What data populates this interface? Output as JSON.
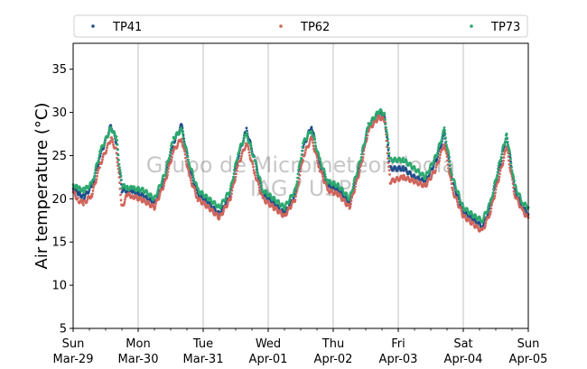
{
  "chart_data": {
    "type": "scatter",
    "title": "",
    "xlabel": "",
    "ylabel": "Air temperature (°C)",
    "ylim": [
      5,
      38
    ],
    "yticks": [
      5,
      10,
      15,
      20,
      25,
      30,
      35
    ],
    "xlim": [
      "2026-03-29 00:00",
      "2026-04-05 00:00"
    ],
    "x_ticks": [
      {
        "x": "2026-03-29",
        "day": "Sun",
        "date": "Mar-29"
      },
      {
        "x": "2026-03-30",
        "day": "Mon",
        "date": "Mar-30"
      },
      {
        "x": "2026-03-31",
        "day": "Tue",
        "date": "Mar-31"
      },
      {
        "x": "2026-04-01",
        "day": "Wed",
        "date": "Apr-01"
      },
      {
        "x": "2026-04-02",
        "day": "Thu",
        "date": "Apr-02"
      },
      {
        "x": "2026-04-03",
        "day": "Fri",
        "date": "Apr-03"
      },
      {
        "x": "2026-04-04",
        "day": "Sat",
        "date": "Apr-04"
      },
      {
        "x": "2026-04-05",
        "day": "Sun",
        "date": "Apr-05"
      }
    ],
    "grid": "vertical at day boundaries",
    "legend_position": "top, above plot, 3 columns",
    "watermark": [
      "Grupo de Micrometeorologia",
      "IAG / USP"
    ],
    "series": [
      {
        "name": "TP41",
        "color": "#1f4e8c",
        "x": [
          "2026-03-29 00:00",
          "2026-03-29 02:00",
          "2026-03-29 04:00",
          "2026-03-29 07:00",
          "2026-03-29 10:00",
          "2026-03-29 14:00",
          "2026-03-29 16:00",
          "2026-03-29 18:00",
          "2026-03-29 20:00",
          "2026-03-29 22:00",
          "2026-03-30 02:00",
          "2026-03-30 06:00",
          "2026-03-30 10:00",
          "2026-03-30 13:00",
          "2026-03-30 16:00",
          "2026-03-30 19:00",
          "2026-03-30 22:00",
          "2026-03-31 02:00",
          "2026-03-31 06:00",
          "2026-03-31 10:00",
          "2026-03-31 13:00",
          "2026-03-31 16:00",
          "2026-03-31 19:00",
          "2026-03-31 22:00",
          "2026-04-01 02:00",
          "2026-04-01 06:00",
          "2026-04-01 10:00",
          "2026-04-01 13:00",
          "2026-04-01 16:00",
          "2026-04-01 19:00",
          "2026-04-01 22:00",
          "2026-04-02 02:00",
          "2026-04-02 06:00",
          "2026-04-02 10:00",
          "2026-04-02 13:00",
          "2026-04-02 17:00",
          "2026-04-02 19:00",
          "2026-04-02 21:00",
          "2026-04-03 02:00",
          "2026-04-03 06:00",
          "2026-04-03 10:00",
          "2026-04-03 14:00",
          "2026-04-03 17:00",
          "2026-04-03 20:00",
          "2026-04-04 00:00",
          "2026-04-04 04:00",
          "2026-04-04 07:00",
          "2026-04-04 10:00",
          "2026-04-04 14:00",
          "2026-04-04 16:00",
          "2026-04-04 19:00",
          "2026-04-04 22:00",
          "2026-04-05 00:00"
        ],
        "values": [
          21.2,
          20.6,
          20.2,
          21.5,
          25.0,
          28.5,
          26.5,
          21.0,
          21.0,
          20.8,
          20.3,
          19.5,
          22.5,
          26.5,
          28.5,
          23.5,
          20.5,
          19.5,
          18.2,
          20.5,
          25.0,
          28.0,
          24.5,
          20.5,
          19.5,
          18.3,
          20.5,
          26.0,
          28.5,
          24.0,
          21.5,
          21.0,
          19.5,
          24.0,
          28.5,
          30.0,
          29.5,
          23.5,
          23.5,
          22.5,
          22.0,
          24.5,
          27.5,
          22.0,
          18.5,
          17.5,
          16.8,
          19.0,
          24.5,
          27.5,
          21.0,
          19.0,
          18.2
        ]
      },
      {
        "name": "TP62",
        "color": "#d0645a",
        "x": [
          "2026-03-29 00:00",
          "2026-03-29 02:00",
          "2026-03-29 04:00",
          "2026-03-29 07:00",
          "2026-03-29 10:00",
          "2026-03-29 14:00",
          "2026-03-29 16:00",
          "2026-03-29 18:00",
          "2026-03-29 20:00",
          "2026-03-29 22:00",
          "2026-03-30 02:00",
          "2026-03-30 06:00",
          "2026-03-30 10:00",
          "2026-03-30 13:00",
          "2026-03-30 16:00",
          "2026-03-30 19:00",
          "2026-03-30 22:00",
          "2026-03-31 02:00",
          "2026-03-31 06:00",
          "2026-03-31 10:00",
          "2026-03-31 13:00",
          "2026-03-31 16:00",
          "2026-03-31 19:00",
          "2026-03-31 22:00",
          "2026-04-01 02:00",
          "2026-04-01 06:00",
          "2026-04-01 10:00",
          "2026-04-01 13:00",
          "2026-04-01 16:00",
          "2026-04-01 19:00",
          "2026-04-01 22:00",
          "2026-04-02 02:00",
          "2026-04-02 06:00",
          "2026-04-02 10:00",
          "2026-04-02 13:00",
          "2026-04-02 17:00",
          "2026-04-02 19:00",
          "2026-04-02 21:00",
          "2026-04-03 02:00",
          "2026-04-03 06:00",
          "2026-04-03 10:00",
          "2026-04-03 14:00",
          "2026-04-03 17:00",
          "2026-04-03 20:00",
          "2026-04-04 00:00",
          "2026-04-04 04:00",
          "2026-04-04 07:00",
          "2026-04-04 10:00",
          "2026-04-04 14:00",
          "2026-04-04 16:00",
          "2026-04-04 19:00",
          "2026-04-04 22:00",
          "2026-04-05 00:00"
        ],
        "values": [
          20.8,
          19.8,
          19.5,
          20.5,
          24.0,
          27.0,
          25.5,
          19.0,
          20.5,
          20.3,
          19.8,
          19.0,
          22.0,
          25.5,
          27.0,
          22.5,
          20.0,
          19.0,
          17.8,
          20.0,
          24.0,
          26.5,
          23.0,
          20.0,
          19.0,
          18.0,
          20.0,
          25.0,
          27.0,
          23.5,
          21.0,
          20.5,
          19.0,
          23.5,
          28.0,
          29.5,
          29.0,
          22.0,
          22.5,
          22.0,
          21.5,
          23.5,
          26.5,
          21.0,
          18.0,
          17.0,
          16.2,
          18.5,
          23.5,
          26.0,
          20.5,
          18.5,
          17.8
        ]
      },
      {
        "name": "TP73",
        "color": "#2ca86e",
        "x": [
          "2026-03-29 00:00",
          "2026-03-29 02:00",
          "2026-03-29 04:00",
          "2026-03-29 07:00",
          "2026-03-29 10:00",
          "2026-03-29 14:00",
          "2026-03-29 16:00",
          "2026-03-29 18:00",
          "2026-03-29 20:00",
          "2026-03-29 22:00",
          "2026-03-30 02:00",
          "2026-03-30 06:00",
          "2026-03-30 10:00",
          "2026-03-30 13:00",
          "2026-03-30 16:00",
          "2026-03-30 19:00",
          "2026-03-30 22:00",
          "2026-03-31 02:00",
          "2026-03-31 06:00",
          "2026-03-31 10:00",
          "2026-03-31 13:00",
          "2026-03-31 16:00",
          "2026-03-31 19:00",
          "2026-03-31 22:00",
          "2026-04-01 02:00",
          "2026-04-01 06:00",
          "2026-04-01 10:00",
          "2026-04-01 13:00",
          "2026-04-01 16:00",
          "2026-04-01 19:00",
          "2026-04-01 22:00",
          "2026-04-02 02:00",
          "2026-04-02 06:00",
          "2026-04-02 10:00",
          "2026-04-02 13:00",
          "2026-04-02 17:00",
          "2026-04-02 19:00",
          "2026-04-02 21:00",
          "2026-04-03 02:00",
          "2026-04-03 06:00",
          "2026-04-03 10:00",
          "2026-04-03 14:00",
          "2026-04-03 17:00",
          "2026-04-03 20:00",
          "2026-04-04 00:00",
          "2026-04-04 04:00",
          "2026-04-04 07:00",
          "2026-04-04 10:00",
          "2026-04-04 14:00",
          "2026-04-04 16:00",
          "2026-04-04 19:00",
          "2026-04-04 22:00",
          "2026-04-05 00:00"
        ],
        "values": [
          21.6,
          21.2,
          21.0,
          21.8,
          25.5,
          28.2,
          27.0,
          21.5,
          21.3,
          21.2,
          21.0,
          20.0,
          23.0,
          27.0,
          28.0,
          24.0,
          21.0,
          20.0,
          19.0,
          21.0,
          25.5,
          27.5,
          24.5,
          21.0,
          20.0,
          19.0,
          21.0,
          26.5,
          28.0,
          24.5,
          22.0,
          21.5,
          20.0,
          24.5,
          28.5,
          30.2,
          29.8,
          24.5,
          24.5,
          23.5,
          22.5,
          25.0,
          28.0,
          22.5,
          19.0,
          18.0,
          17.5,
          19.5,
          25.0,
          27.5,
          21.5,
          19.5,
          19.0
        ]
      }
    ]
  }
}
